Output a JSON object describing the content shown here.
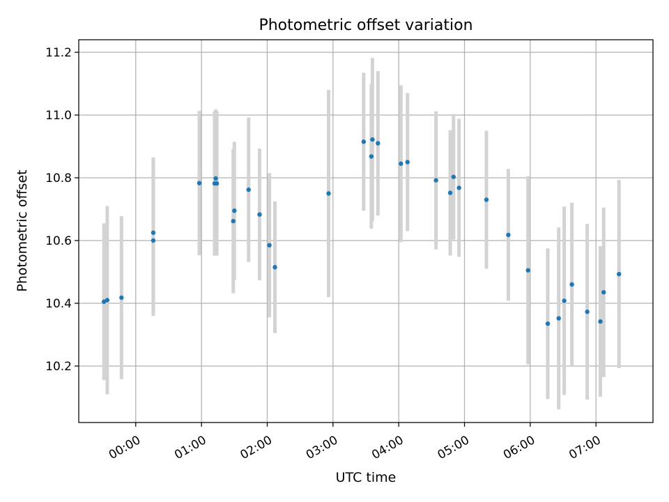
{
  "chart_data": {
    "type": "scatter",
    "title": "Photometric offset variation",
    "xlabel": "UTC time",
    "ylabel": "Photometric offset",
    "grid": true,
    "xlim": [
      "-00:52",
      "07:52"
    ],
    "ylim": [
      10.02,
      11.24
    ],
    "x_ticks": [
      "00:00",
      "01:00",
      "02:00",
      "03:00",
      "04:00",
      "05:00",
      "06:00",
      "07:00"
    ],
    "y_ticks": [
      "10.2",
      "10.4",
      "10.6",
      "10.8",
      "11.0",
      "11.2"
    ],
    "colors": {
      "point": "#1f77b4",
      "errorbar": "#d3d3d3",
      "grid": "#b0b0b0"
    },
    "points": [
      {
        "x": "-00:29",
        "y": 10.405,
        "err": 0.25
      },
      {
        "x": "-00:26",
        "y": 10.41,
        "err": 0.3
      },
      {
        "x": "-00:13",
        "y": 10.418,
        "err": 0.26
      },
      {
        "x": "00:16",
        "y": 10.625,
        "err": 0.24
      },
      {
        "x": "00:16",
        "y": 10.6,
        "err": 0.24
      },
      {
        "x": "00:58",
        "y": 10.783,
        "err": 0.23
      },
      {
        "x": "01:12",
        "y": 10.782,
        "err": 0.23
      },
      {
        "x": "01:13",
        "y": 10.798,
        "err": 0.22
      },
      {
        "x": "01:14",
        "y": 10.782,
        "err": 0.23
      },
      {
        "x": "01:29",
        "y": 10.662,
        "err": 0.23
      },
      {
        "x": "01:30",
        "y": 10.695,
        "err": 0.22
      },
      {
        "x": "01:43",
        "y": 10.762,
        "err": 0.23
      },
      {
        "x": "01:53",
        "y": 10.683,
        "err": 0.21
      },
      {
        "x": "02:02",
        "y": 10.585,
        "err": 0.23
      },
      {
        "x": "02:07",
        "y": 10.515,
        "err": 0.21
      },
      {
        "x": "02:56",
        "y": 10.75,
        "err": 0.33
      },
      {
        "x": "03:28",
        "y": 10.915,
        "err": 0.22
      },
      {
        "x": "03:35",
        "y": 10.868,
        "err": 0.23
      },
      {
        "x": "03:36",
        "y": 10.922,
        "err": 0.26
      },
      {
        "x": "03:41",
        "y": 10.91,
        "err": 0.23
      },
      {
        "x": "04:02",
        "y": 10.845,
        "err": 0.25
      },
      {
        "x": "04:08",
        "y": 10.85,
        "err": 0.22
      },
      {
        "x": "04:34",
        "y": 10.792,
        "err": 0.22
      },
      {
        "x": "04:47",
        "y": 10.752,
        "err": 0.2
      },
      {
        "x": "04:50",
        "y": 10.803,
        "err": 0.2
      },
      {
        "x": "04:55",
        "y": 10.768,
        "err": 0.22
      },
      {
        "x": "05:20",
        "y": 10.73,
        "err": 0.22
      },
      {
        "x": "05:40",
        "y": 10.618,
        "err": 0.21
      },
      {
        "x": "05:58",
        "y": 10.505,
        "err": 0.3
      },
      {
        "x": "06:16",
        "y": 10.335,
        "err": 0.24
      },
      {
        "x": "06:26",
        "y": 10.352,
        "err": 0.29
      },
      {
        "x": "06:31",
        "y": 10.408,
        "err": 0.3
      },
      {
        "x": "06:38",
        "y": 10.46,
        "err": 0.26
      },
      {
        "x": "06:52",
        "y": 10.373,
        "err": 0.28
      },
      {
        "x": "07:04",
        "y": 10.342,
        "err": 0.24
      },
      {
        "x": "07:07",
        "y": 10.435,
        "err": 0.27
      },
      {
        "x": "07:21",
        "y": 10.493,
        "err": 0.3
      }
    ]
  }
}
